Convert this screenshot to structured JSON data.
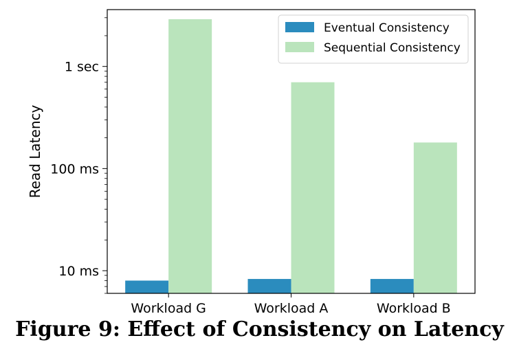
{
  "figure": {
    "caption": "Figure 9: Effect of Consistency on Latency"
  },
  "chart_data": {
    "type": "bar",
    "ylabel": "Read Latency",
    "xlabel": "",
    "yscale": "log",
    "ylim": [
      6,
      3600
    ],
    "yticks": [
      {
        "value": 10,
        "label": "10 ms"
      },
      {
        "value": 100,
        "label": "100 ms"
      },
      {
        "value": 1000,
        "label": "1 sec"
      }
    ],
    "categories": [
      "Workload G",
      "Workload A",
      "Workload B"
    ],
    "series": [
      {
        "name": "Eventual Consistency",
        "color": "#2b8cbe",
        "values": [
          8,
          8.3,
          8.3
        ]
      },
      {
        "name": "Sequential Consistency",
        "color": "#bae4bc",
        "values": [
          2900,
          700,
          180
        ]
      }
    ],
    "legend": {
      "position": "top-right"
    },
    "grid": false
  }
}
